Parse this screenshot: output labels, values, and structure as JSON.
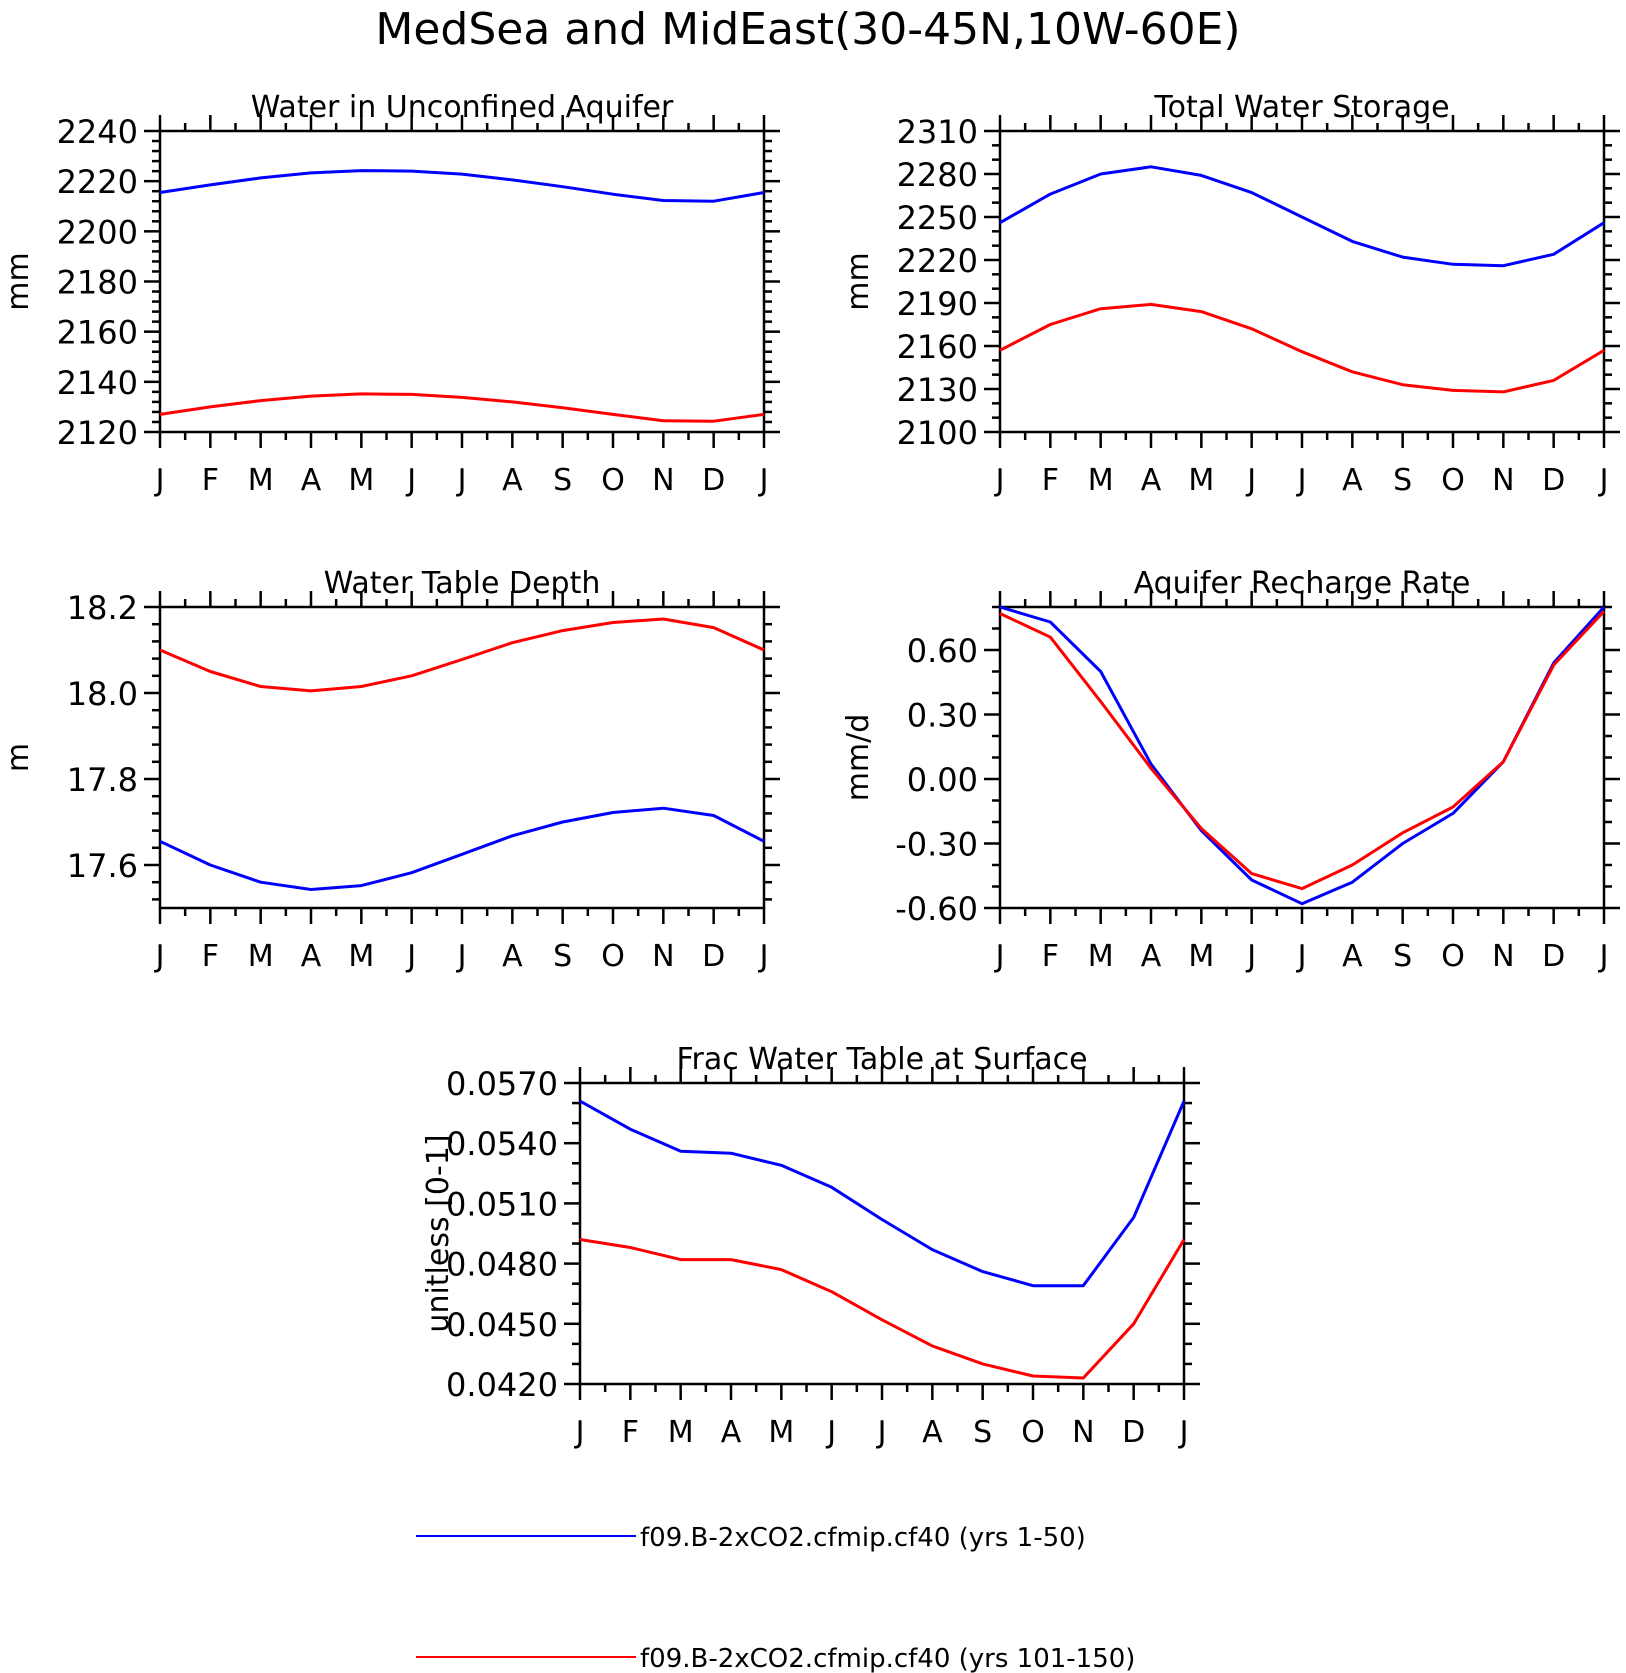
{
  "figure_title": "MedSea and MidEast(30-45N,10W-60E)",
  "legend": [
    {
      "label": "f09.B-2xCO2.cfmip.cf40 (yrs 1-50)",
      "color": "#0000ff"
    },
    {
      "label": "f09.B-2xCO2.cfmip.cf40 (yrs 101-150)",
      "color": "#ff0000"
    }
  ],
  "chart_data": [
    {
      "type": "line",
      "title": "Water in Unconfined Aquifer",
      "ylabel": "mm",
      "x": [
        "J",
        "F",
        "M",
        "A",
        "M",
        "J",
        "J",
        "A",
        "S",
        "O",
        "N",
        "D",
        "J"
      ],
      "ylim": [
        2120,
        2240
      ],
      "yticks": [
        "2120",
        "2140",
        "2160",
        "2180",
        "2200",
        "2220",
        "2240"
      ],
      "grid": false,
      "series": [
        {
          "name": "f09.B-2xCO2.cfmip.cf40 (yrs 1-50)",
          "color": "#0000ff",
          "values": [
            2215.5,
            2218.5,
            2221.3,
            2223.3,
            2224.2,
            2224.0,
            2222.8,
            2220.5,
            2217.8,
            2214.8,
            2212.3,
            2212.0,
            2215.5
          ]
        },
        {
          "name": "f09.B-2xCO2.cfmip.cf40 (yrs 101-150)",
          "color": "#ff0000",
          "values": [
            2127.0,
            2130.0,
            2132.5,
            2134.3,
            2135.2,
            2135.0,
            2133.8,
            2132.0,
            2129.7,
            2127.0,
            2124.5,
            2124.3,
            2127.0
          ]
        }
      ]
    },
    {
      "type": "line",
      "title": "Total Water Storage",
      "ylabel": "mm",
      "x": [
        "J",
        "F",
        "M",
        "A",
        "M",
        "J",
        "J",
        "A",
        "S",
        "O",
        "N",
        "D",
        "J"
      ],
      "ylim": [
        2100,
        2310
      ],
      "yticks": [
        "2100",
        "2130",
        "2160",
        "2190",
        "2220",
        "2250",
        "2280",
        "2310"
      ],
      "grid": false,
      "series": [
        {
          "name": "f09.B-2xCO2.cfmip.cf40 (yrs 1-50)",
          "color": "#0000ff",
          "values": [
            2246,
            2266,
            2280,
            2285,
            2279,
            2267,
            2250,
            2233,
            2222,
            2217,
            2216,
            2224,
            2246
          ]
        },
        {
          "name": "f09.B-2xCO2.cfmip.cf40 (yrs 101-150)",
          "color": "#ff0000",
          "values": [
            2157,
            2175,
            2186,
            2189,
            2184,
            2172,
            2156,
            2142,
            2133,
            2129,
            2128,
            2136,
            2157
          ]
        }
      ]
    },
    {
      "type": "line",
      "title": "Water Table Depth",
      "ylabel": "m",
      "x": [
        "J",
        "F",
        "M",
        "A",
        "M",
        "J",
        "J",
        "A",
        "S",
        "O",
        "N",
        "D",
        "J"
      ],
      "ylim": [
        17.5,
        18.2
      ],
      "yticks": [
        "17.6",
        "17.8",
        "18.0",
        "18.2"
      ],
      "grid": false,
      "series": [
        {
          "name": "f09.B-2xCO2.cfmip.cf40 (yrs 1-50)",
          "color": "#0000ff",
          "values": [
            17.655,
            17.6,
            17.56,
            17.543,
            17.552,
            17.582,
            17.625,
            17.668,
            17.7,
            17.722,
            17.732,
            17.715,
            17.655
          ]
        },
        {
          "name": "f09.B-2xCO2.cfmip.cf40 (yrs 101-150)",
          "color": "#ff0000",
          "values": [
            18.1,
            18.05,
            18.015,
            18.005,
            18.015,
            18.04,
            18.078,
            18.117,
            18.145,
            18.164,
            18.172,
            18.152,
            18.1
          ]
        }
      ]
    },
    {
      "type": "line",
      "title": "Aquifer Recharge Rate",
      "ylabel": "mm/d",
      "x": [
        "J",
        "F",
        "M",
        "A",
        "M",
        "J",
        "J",
        "A",
        "S",
        "O",
        "N",
        "D",
        "J"
      ],
      "ylim": [
        -0.6,
        0.8
      ],
      "yticks": [
        "-0.60",
        "-0.30",
        "0.00",
        "0.30",
        "0.60"
      ],
      "grid": false,
      "series": [
        {
          "name": "f09.B-2xCO2.cfmip.cf40 (yrs 1-50)",
          "color": "#0000ff",
          "values": [
            0.8,
            0.73,
            0.5,
            0.07,
            -0.24,
            -0.47,
            -0.58,
            -0.48,
            -0.3,
            -0.16,
            0.08,
            0.54,
            0.8
          ]
        },
        {
          "name": "f09.B-2xCO2.cfmip.cf40 (yrs 101-150)",
          "color": "#ff0000",
          "values": [
            0.77,
            0.66,
            0.36,
            0.05,
            -0.23,
            -0.44,
            -0.51,
            -0.4,
            -0.25,
            -0.13,
            0.08,
            0.53,
            0.78
          ]
        }
      ]
    },
    {
      "type": "line",
      "title": "Frac Water Table at Surface",
      "ylabel": "unitless [0-1]",
      "x": [
        "J",
        "F",
        "M",
        "A",
        "M",
        "J",
        "J",
        "A",
        "S",
        "O",
        "N",
        "D",
        "J"
      ],
      "ylim": [
        0.042,
        0.057
      ],
      "yticks": [
        "0.0420",
        "0.0450",
        "0.0480",
        "0.0510",
        "0.0540",
        "0.0570"
      ],
      "grid": false,
      "series": [
        {
          "name": "f09.B-2xCO2.cfmip.cf40 (yrs 1-50)",
          "color": "#0000ff",
          "values": [
            0.0561,
            0.0547,
            0.0536,
            0.0535,
            0.0529,
            0.0518,
            0.0502,
            0.0487,
            0.0476,
            0.0469,
            0.0469,
            0.0503,
            0.0561
          ]
        },
        {
          "name": "f09.B-2xCO2.cfmip.cf40 (yrs 101-150)",
          "color": "#ff0000",
          "values": [
            0.0492,
            0.0488,
            0.0482,
            0.0482,
            0.0477,
            0.0466,
            0.0452,
            0.0439,
            0.043,
            0.0424,
            0.0423,
            0.045,
            0.0492
          ]
        }
      ]
    }
  ]
}
